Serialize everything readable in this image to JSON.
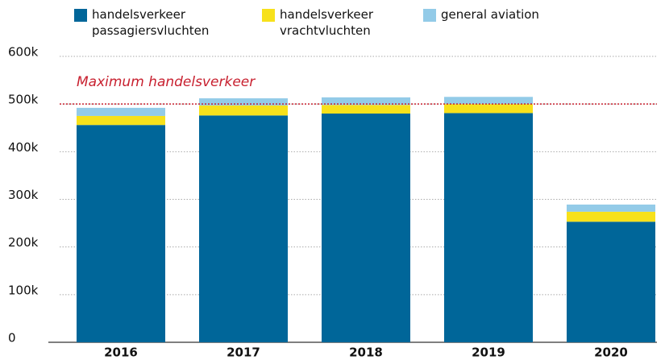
{
  "chart_data": {
    "type": "stacked_bar",
    "categories": [
      "2016",
      "2017",
      "2018",
      "2019",
      "2020"
    ],
    "series": [
      {
        "name": "handelsverkeer\npassagiersvluchten",
        "color": "#006699",
        "values": [
          456000,
          476000,
          480000,
          481000,
          253000
        ]
      },
      {
        "name": "handelsverkeer\nvrachtvluchten",
        "color": "#f7e11b",
        "values": [
          19000,
          21000,
          18000,
          19000,
          21000
        ]
      },
      {
        "name": "general aviation",
        "color": "#93cbe8",
        "values": [
          17000,
          15000,
          16000,
          15000,
          15000
        ]
      }
    ],
    "ylim": [
      0,
      600000
    ],
    "yticks": [
      0,
      {
        "value": 100000,
        "label": "100k"
      },
      {
        "value": 200000,
        "label": "200k"
      },
      {
        "value": 300000,
        "label": "300k"
      },
      {
        "value": 400000,
        "label": "400k"
      },
      {
        "value": 500000,
        "label": "500k"
      },
      {
        "value": 600000,
        "label": "600k"
      }
    ],
    "grid": true,
    "annotations": [
      {
        "text": "Maximum handelsverkeer",
        "value": 500000,
        "color": "#c8202f"
      }
    ]
  }
}
